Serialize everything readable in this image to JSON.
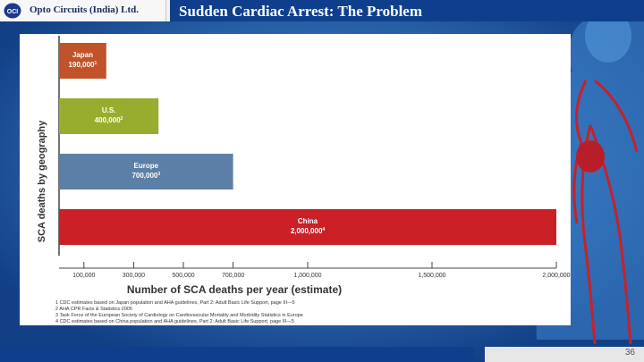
{
  "header": {
    "company": "Opto Circuits (India) Ltd.",
    "logo_text": "OCI",
    "title": "Sudden Cardiac Arrest: The Problem"
  },
  "page_number": "36",
  "chart_data": {
    "type": "bar",
    "orientation": "horizontal",
    "ylabel": "SCA deaths by geography",
    "xlabel": "Number of SCA deaths per year (estimate)",
    "xlim": [
      0,
      2000000
    ],
    "ticks": [
      "100,000",
      "300,000",
      "500,000",
      "700,000",
      "1,000,000",
      "1,500,000",
      "2,000,000"
    ],
    "tick_values": [
      100000,
      300000,
      500000,
      700000,
      1000000,
      1500000,
      2000000
    ],
    "categories": [
      {
        "name": "Japan",
        "label": "190,000",
        "sup": "1",
        "value": 190000,
        "color": "#c0532a"
      },
      {
        "name": "U.S.",
        "label": "400,000",
        "sup": "2",
        "value": 400000,
        "color": "#98ad2e"
      },
      {
        "name": "Europe",
        "label": "700,000",
        "sup": "3",
        "value": 700000,
        "color": "#5b7fa6"
      },
      {
        "name": "China",
        "label": "2,000,000",
        "sup": "4",
        "value": 2000000,
        "color": "#cc2027"
      }
    ],
    "footnotes": [
      "1 CDC estimates based on Japan population and AHA guidelines, Part 2: Adult Basic Life Support, page III—5",
      "2 AHA CPR Facts & Statistics 2005",
      "3 Task Force of the European Society of Cardiology on Cardiovascular Mortality and Morbidity Statistics in Europe",
      "4 CDC estimates based on China population and AHA guidelines, Part 2: Adult Basic Life Support, page III—5"
    ]
  },
  "colors": {
    "background": "#1d4f9a",
    "title_bar": "#0f3f8c",
    "artery": "#c8202a"
  }
}
